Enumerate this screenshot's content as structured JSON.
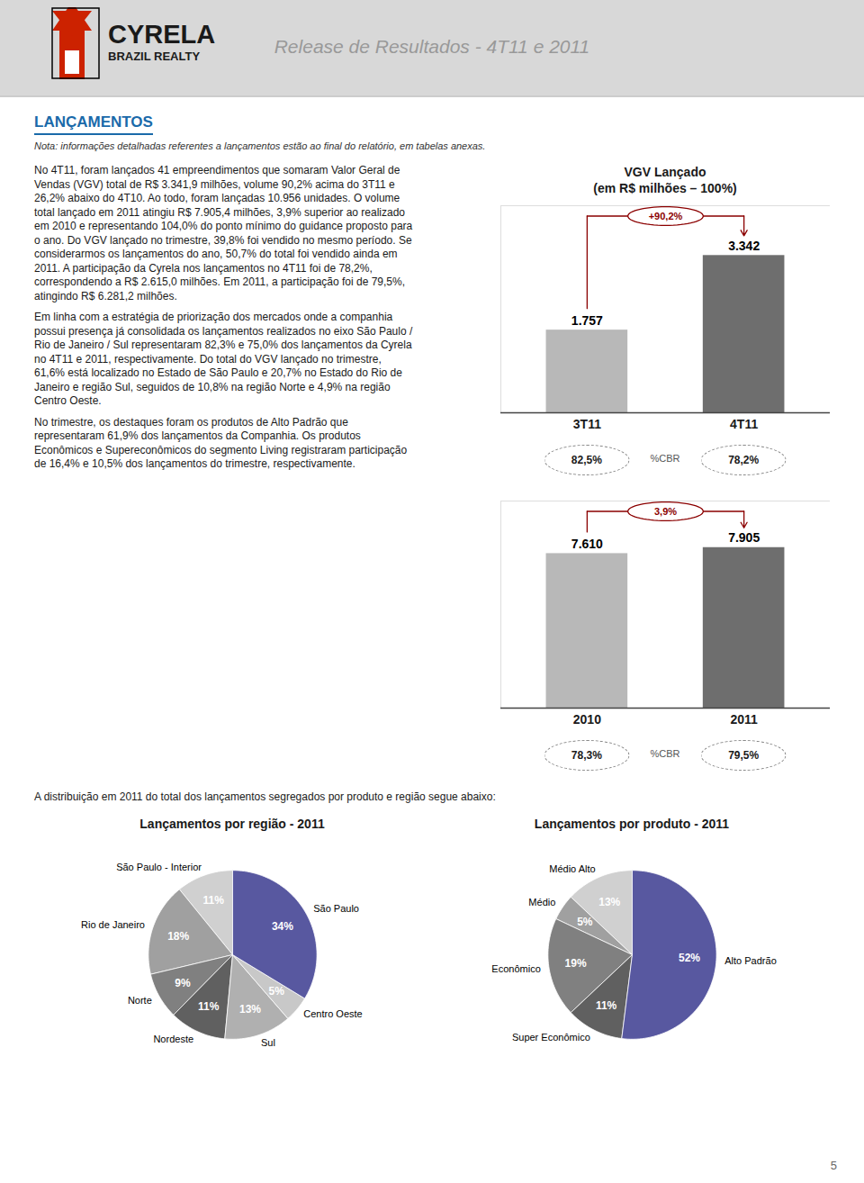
{
  "header": {
    "brand": "CYRELA",
    "brand_subtitle": "BRAZIL REALTY",
    "title": "Release de Resultados - 4T11 e 2011"
  },
  "section": {
    "title": "LANÇAMENTOS",
    "note": "Nota: informações detalhadas referentes a lançamentos estão ao final do relatório, em tabelas anexas.",
    "paragraphs": [
      [
        "No 4T11, foram lançados 41 empreendimentos que somaram Valor Geral de",
        "Vendas (VGV) total de R$ 3.341,9 milhões, volume 90,2% acima do 3T11 e",
        "26,2% abaixo do 4T10. Ao todo, foram lançadas 10.956 unidades. O volume",
        "total lançado em 2011 atingiu R$ 7.905,4 milhões, 3,9% superior ao realizado",
        "em 2010 e representando 104,0% do ponto mínimo do guidance proposto para",
        "o ano. Do VGV lançado no trimestre, 39,8% foi vendido no mesmo período. Se",
        "considerarmos os lançamentos do ano, 50,7% do total foi vendido ainda em",
        "2011. A participação da Cyrela nos lançamentos no 4T11 foi de 78,2%,",
        "correspondendo a R$ 2.615,0 milhões. Em 2011, a participação foi de 79,5%,",
        "atingindo R$ 6.281,2 milhões."
      ],
      [
        "Em linha com a estratégia de priorização dos mercados onde a companhia",
        "possui presença já consolidada os lançamentos realizados no eixo São Paulo /",
        "Rio de Janeiro / Sul representaram 82,3% e 75,0% dos lançamentos da Cyrela",
        "no 4T11 e 2011, respectivamente. Do total do VGV lançado no trimestre,",
        "61,6% está localizado no Estado de São Paulo e 20,7% no Estado do Rio de",
        "Janeiro e região Sul, seguidos de 10,8% na região Norte e 4,9% na região",
        "Centro Oeste."
      ],
      [
        "No trimestre, os destaques foram os produtos de Alto Padrão que",
        "representaram 61,9% dos lançamentos da Companhia. Os produtos",
        "Econômicos e Supereconômicos do segmento Living registraram participação",
        "de 16,4% e 10,5% dos lançamentos do trimestre, respectivamente."
      ]
    ],
    "closing": "A distribuição em 2011 do total dos lançamentos segregados por produto e região segue abaixo:"
  },
  "page_number": "5",
  "chart_data": [
    {
      "type": "bar",
      "title": "VGV Lançado",
      "subtitle": "(em R$ milhões – 100%)",
      "categories": [
        "3T11",
        "4T11"
      ],
      "values": [
        1757,
        3342
      ],
      "value_labels": [
        "1.757",
        "3.342"
      ],
      "colors": [
        "#b8b8b8",
        "#6e6e6e"
      ],
      "data_labels": true,
      "ylim": [
        0,
        4400
      ],
      "yticks": [],
      "tick_labels": "x",
      "grid": false,
      "annotations": [
        {
          "text": "+90,2%",
          "color": "#8b0000"
        }
      ],
      "cbr": {
        "title": "%CBR",
        "labels": [
          "82,5%",
          "78,2%"
        ]
      }
    },
    {
      "type": "bar",
      "categories": [
        "2010",
        "2011"
      ],
      "values": [
        7610,
        7905
      ],
      "value_labels": [
        "7.610",
        "7.905"
      ],
      "colors": [
        "#b8b8b8",
        "#6e6e6e"
      ],
      "data_labels": true,
      "ylim": [
        0,
        10200
      ],
      "yticks": [],
      "tick_labels": "x",
      "grid": false,
      "annotations": [
        {
          "text": "3,9%",
          "color": "#8b0000"
        }
      ],
      "cbr": {
        "title": "%CBR",
        "labels": [
          "78,3%",
          "79,5%"
        ]
      }
    },
    {
      "type": "pie",
      "title": "Lançamentos por região - 2011",
      "categories": [
        "São Paulo - Interior",
        "Rio de Janeiro",
        "Norte",
        "Nordeste",
        "Sul",
        "Centro Oeste",
        "São Paulo"
      ],
      "values": [
        11,
        18,
        9,
        11,
        13,
        5,
        34
      ],
      "value_labels": [
        "11%",
        "18%",
        "9%",
        "11%",
        "13%",
        "5%",
        "34%"
      ],
      "colors": [
        "#d0d0d0",
        "#a0a0a0",
        "#808080",
        "#606060",
        "#b0b0b0",
        "#c8c8c8",
        "#5858a0"
      ],
      "data_labels": true
    },
    {
      "type": "pie",
      "title": "Lançamentos por produto - 2011",
      "categories": [
        "Médio Alto",
        "Médio",
        "Econômico",
        "Super Econômico",
        "Alto Padrão"
      ],
      "values": [
        13,
        5,
        19,
        11,
        52
      ],
      "value_labels": [
        "13%",
        "5%",
        "19%",
        "11%",
        "52%"
      ],
      "colors": [
        "#d0d0d0",
        "#a0a0a0",
        "#808080",
        "#606060",
        "#5858a0"
      ],
      "data_labels": true
    }
  ]
}
